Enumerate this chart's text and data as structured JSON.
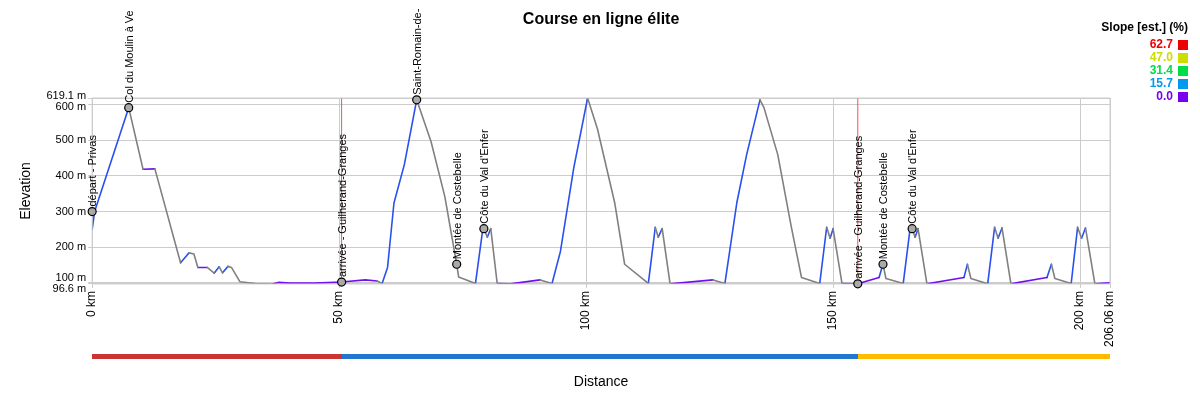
{
  "chart_data": {
    "type": "line",
    "title": "Course en ligne élite",
    "xlabel": "Distance",
    "ylabel": "Elevation",
    "legend_title": "Slope [est.] (%)",
    "clim": [
      0,
      62.7
    ],
    "cticks": [
      {
        "value": 0,
        "label": "0.0"
      },
      15.7,
      31.4,
      {
        "value": 47,
        "label": "47.0"
      },
      62.7
    ],
    "xlim": [
      0,
      206.06
    ],
    "xticks": [
      {
        "value": 0,
        "label": "0 km"
      },
      {
        "value": 50,
        "label": "50 km"
      },
      {
        "value": 100,
        "label": "100 km"
      },
      {
        "value": 150,
        "label": "150 km"
      },
      {
        "value": 200,
        "label": "200 km"
      },
      {
        "value": 206.06,
        "label": "206.06 km"
      }
    ],
    "ylim": [
      96.6,
      619.1
    ],
    "yticks": [
      {
        "value": 96.6,
        "label": "96.6 m"
      },
      {
        "value": 100,
        "label": "100 m"
      },
      {
        "value": 200,
        "label": "200 m"
      },
      {
        "value": 300,
        "label": "300 m"
      },
      {
        "value": 400,
        "label": "400 m"
      },
      {
        "value": 500,
        "label": "500 m"
      },
      {
        "value": 600,
        "label": "600 m"
      },
      {
        "value": 619.1,
        "label": "619.1 m"
      }
    ],
    "grid": true,
    "marker": "none",
    "series": [
      {
        "color": "#808080",
        "x": [
          7.4,
          10.3,
          null,
          12.7,
          17.9,
          null,
          19.6,
          20.6,
          21.4,
          null,
          23.3,
          24.7,
          null,
          25.7,
          26.4,
          null,
          27.5,
          28.2,
          29.9,
          33,
          36.5,
          null,
          57.7,
          58.7,
          null,
          65.7,
          68.6,
          71.4,
          73.8,
          74.2,
          77.6,
          null,
          79.3,
          80,
          null,
          80.7,
          82,
          null,
          90.7,
          93.1,
          null,
          100.3,
          102.3,
          105.8,
          107.8,
          112.6,
          null,
          114,
          114.6,
          null,
          115.4,
          117,
          null,
          125.7,
          128.1,
          null,
          135.2,
          136,
          138.8,
          141.5,
          143.6,
          147.3,
          null,
          148.7,
          149.4,
          null,
          150,
          151.8,
          null,
          160.1,
          160.7,
          164.2,
          null,
          166,
          166.6,
          null,
          167.2,
          169,
          null,
          177.2,
          177.9,
          181.3,
          null,
          182.7,
          183.4,
          null,
          184.2,
          186,
          null,
          194.2,
          194.9,
          198.2,
          null,
          199.5,
          200.3,
          null,
          201.1,
          203
        ],
        "values": [
          592,
          419,
          null,
          420,
          156,
          null,
          184,
          181,
          143,
          null,
          143,
          127,
          null,
          145,
          128,
          null,
          146,
          143,
          103,
          98,
          96.6,
          null,
          105,
          98,
          null,
          614,
          497,
          342,
          152,
          116,
          98,
          null,
          252,
          228,
          null,
          252,
          98,
          null,
          108,
          98,
          null,
          619.1,
          532,
          324,
          152,
          98,
          null,
          256,
          228,
          null,
          252,
          97,
          null,
          108,
          98,
          null,
          614,
          592,
          460,
          260,
          115,
          98,
          null,
          256,
          225,
          null,
          252,
          98,
          null,
          152,
          112,
          98,
          null,
          252,
          228,
          null,
          252,
          97,
          null,
          152,
          112,
          97,
          null,
          256,
          225,
          null,
          254,
          97,
          null,
          152,
          112,
          98,
          null,
          256,
          225,
          null,
          254,
          97
        ]
      },
      {
        "color": "#7010ee",
        "x": [
          10.3,
          12.7,
          null,
          21.4,
          23.3,
          null,
          36.5,
          37.7,
          40,
          45,
          50.5,
          55.3,
          57.7,
          null,
          82,
          84.7,
          90.7,
          null,
          117,
          125.7,
          null,
          151.8,
          155,
          159.3,
          null,
          169,
          176.5,
          null,
          186,
          193.3,
          null,
          203,
          206.06
        ],
        "values": [
          419,
          420,
          null,
          143,
          143,
          null,
          96.6,
          101,
          99,
          99,
          102,
          108,
          105,
          null,
          98,
          97,
          108,
          null,
          97,
          108,
          null,
          98,
          97,
          115,
          null,
          97,
          115,
          null,
          97,
          115,
          null,
          97,
          100
        ]
      },
      {
        "color": "#2a50ee",
        "x": [
          0,
          0.5,
          7.4,
          null,
          17.9,
          19.6,
          null,
          24.7,
          25.7,
          null,
          26.4,
          27.5,
          null,
          58.7,
          59.8,
          61.1,
          63.2,
          65.7,
          null,
          77.6,
          79,
          79.3,
          null,
          80,
          80.7,
          null,
          93.1,
          94.8,
          97.5,
          100.3,
          null,
          112.6,
          114,
          null,
          114.6,
          115.4,
          null,
          128.1,
          130.5,
          132.5,
          135.2,
          null,
          147.3,
          148.7,
          null,
          149.4,
          150,
          null,
          159.3,
          160.1,
          null,
          164.2,
          165.5,
          166,
          null,
          166.6,
          167.2,
          null,
          176.5,
          177.2,
          null,
          181.3,
          182.7,
          null,
          183.4,
          184.2,
          null,
          193.3,
          194.2,
          null,
          198.2,
          199.5,
          null,
          200.3,
          201.1
        ],
        "values": [
          250,
          300,
          592,
          null,
          156,
          184,
          null,
          127,
          145,
          null,
          128,
          146,
          null,
          98,
          143,
          324,
          432,
          614,
          null,
          98,
          242,
          252,
          null,
          228,
          252,
          null,
          98,
          188,
          423,
          619.1,
          null,
          98,
          256,
          null,
          228,
          252,
          null,
          98,
          324,
          460,
          614,
          null,
          98,
          256,
          null,
          225,
          252,
          null,
          115,
          152,
          null,
          98,
          242,
          252,
          null,
          228,
          252,
          null,
          115,
          152,
          null,
          97,
          256,
          null,
          225,
          254,
          null,
          115,
          152,
          null,
          98,
          256,
          null,
          225,
          254
        ]
      }
    ],
    "ref_lines": [
      {
        "axis": "x",
        "value": 50.5,
        "color": "#ff5050"
      },
      {
        "axis": "x",
        "value": 155,
        "color": "#ff5050"
      }
    ],
    "annotations": [
      {
        "text": "départ - Privas",
        "x": 0,
        "y": 300
      },
      {
        "text": "Col du Moulin à Ve",
        "x": 7.4,
        "y": 592
      },
      {
        "text": "arrivée - Guilherand-Granges",
        "x": 50.5,
        "y": 102
      },
      {
        "text": "Saint-Romain-de-",
        "x": 65.7,
        "y": 614
      },
      {
        "text": "Montée de Costebelle",
        "x": 73.8,
        "y": 152
      },
      {
        "text": "Côte du Val d'Enfer",
        "x": 79.3,
        "y": 252
      },
      {
        "text": "arrivée - Guilherand-Granges",
        "x": 155,
        "y": 97
      },
      {
        "text": "Montée de Costebelle",
        "x": 160.1,
        "y": 152
      },
      {
        "text": "Côte du Val d'Enfer",
        "x": 166,
        "y": 252
      }
    ]
  }
}
